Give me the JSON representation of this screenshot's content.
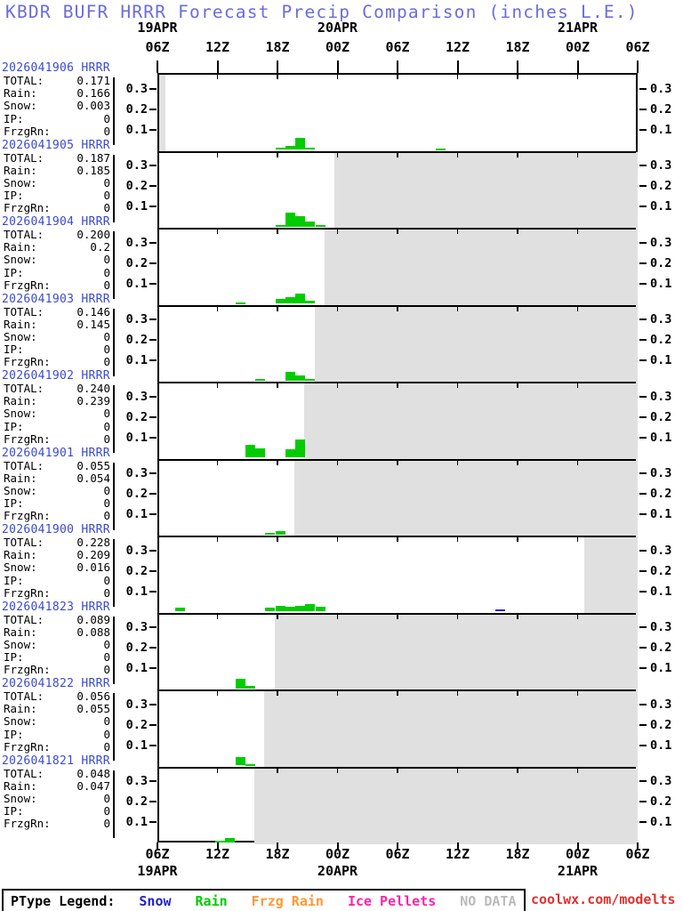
{
  "title": "KBDR BUFR HRRR Forecast Precip Comparison (inches L.E.)",
  "colors": {
    "title": "#6b6bdf",
    "run_label": "#3a4ad0",
    "rain": "#00cc00",
    "snow": "#2222cc",
    "frzg_rain": "#ff9933",
    "ice_pellets": "#ff22aa",
    "no_data_fill": "#e0e0e0",
    "no_data_text": "#bbbbbb",
    "watermark": "#e03030",
    "axis_text": "#000000"
  },
  "axis": {
    "top_dates": [
      {
        "label": "19APR",
        "hour": 0
      },
      {
        "label": "20APR",
        "hour": 18
      },
      {
        "label": "21APR",
        "hour": 42
      }
    ],
    "bottom_dates": [
      {
        "label": "19APR",
        "hour": 0
      },
      {
        "label": "20APR",
        "hour": 18
      },
      {
        "label": "21APR",
        "hour": 42
      }
    ],
    "time_ticks": [
      {
        "label": "06Z",
        "hour": 0
      },
      {
        "label": "12Z",
        "hour": 6
      },
      {
        "label": "18Z",
        "hour": 12
      },
      {
        "label": "00Z",
        "hour": 18
      },
      {
        "label": "06Z",
        "hour": 24
      },
      {
        "label": "12Z",
        "hour": 30
      },
      {
        "label": "18Z",
        "hour": 36
      },
      {
        "label": "00Z",
        "hour": 42
      },
      {
        "label": "06Z",
        "hour": 48
      }
    ],
    "y_tick_labels": [
      "0.1",
      "0.2",
      "0.3"
    ]
  },
  "stat_labels": [
    "TOTAL:",
    "Rain:",
    "Snow:",
    "IP:",
    "FrzgRn:"
  ],
  "legend": {
    "title": "PType Legend:",
    "items": [
      {
        "label": "Snow",
        "color_key": "snow"
      },
      {
        "label": "Rain",
        "color_key": "rain"
      },
      {
        "label": "Frzg Rain",
        "color_key": "frzg_rain"
      },
      {
        "label": "Ice Pellets",
        "color_key": "ice_pellets"
      },
      {
        "label": "NO DATA",
        "color_key": "no_data_text"
      }
    ]
  },
  "watermark": {
    "text": "coolwx.com/modelts"
  },
  "chart_data": {
    "type": "bar",
    "title": "KBDR BUFR HRRR Forecast Precip Comparison (inches L.E.)",
    "x_axis": {
      "start": "2026-04-19 06Z",
      "end": "2026-04-21 06Z",
      "span_hours": 48,
      "tick_interval_hours": 6
    },
    "y_axis": {
      "min": 0,
      "max": 0.375,
      "ticks": [
        0.1,
        0.2,
        0.3
      ],
      "units": "inches liquid equivalent"
    },
    "bar_unit_hours": 1,
    "panels": [
      {
        "run": "2026041906 HRRR",
        "stats": [
          "0.171",
          "0.166",
          "0.003",
          "0",
          "0"
        ],
        "bars": [
          [
            12,
            0.013,
            "rain"
          ],
          [
            13,
            0.02,
            "rain"
          ],
          [
            14,
            0.057,
            "rain"
          ],
          [
            15,
            0.013,
            "rain"
          ],
          [
            28,
            0.006,
            "rain"
          ]
        ],
        "no_data": [
          [
            0,
            0.6
          ]
        ]
      },
      {
        "run": "2026041905 HRRR",
        "stats": [
          "0.187",
          "0.185",
          "0",
          "0",
          "0"
        ],
        "bars": [
          [
            12,
            0.008,
            "rain"
          ],
          [
            13,
            0.068,
            "rain"
          ],
          [
            14,
            0.052,
            "rain"
          ],
          [
            15,
            0.024,
            "rain"
          ],
          [
            16,
            0.01,
            "rain"
          ]
        ],
        "no_data": [
          [
            17.7,
            48
          ]
        ]
      },
      {
        "run": "2026041904 HRRR",
        "stats": [
          "0.200",
          "0.2",
          "0",
          "0",
          "0"
        ],
        "bars": [
          [
            8,
            0.006,
            "rain"
          ],
          [
            12,
            0.022,
            "rain"
          ],
          [
            13,
            0.032,
            "rain"
          ],
          [
            14,
            0.048,
            "rain"
          ],
          [
            15,
            0.014,
            "rain"
          ]
        ],
        "no_data": [
          [
            16.7,
            48
          ]
        ]
      },
      {
        "run": "2026041903 HRRR",
        "stats": [
          "0.146",
          "0.145",
          "0",
          "0",
          "0"
        ],
        "bars": [
          [
            10,
            0.006,
            "rain"
          ],
          [
            13,
            0.042,
            "rain"
          ],
          [
            14,
            0.026,
            "rain"
          ],
          [
            15,
            0.008,
            "rain"
          ]
        ],
        "no_data": [
          [
            15.7,
            48
          ]
        ]
      },
      {
        "run": "2026041902 HRRR",
        "stats": [
          "0.240",
          "0.239",
          "0",
          "0",
          "0"
        ],
        "bars": [
          [
            9,
            0.065,
            "rain"
          ],
          [
            10,
            0.045,
            "rain"
          ],
          [
            13,
            0.04,
            "rain"
          ],
          [
            14,
            0.09,
            "rain"
          ]
        ],
        "no_data": [
          [
            14.7,
            48
          ]
        ]
      },
      {
        "run": "2026041901 HRRR",
        "stats": [
          "0.055",
          "0.054",
          "0",
          "0",
          "0"
        ],
        "bars": [
          [
            11,
            0.01,
            "rain"
          ],
          [
            12,
            0.016,
            "rain"
          ]
        ],
        "no_data": [
          [
            13.7,
            48
          ]
        ]
      },
      {
        "run": "2026041900 HRRR",
        "stats": [
          "0.228",
          "0.209",
          "0.016",
          "0",
          "0"
        ],
        "bars": [
          [
            2,
            0.02,
            "rain"
          ],
          [
            11,
            0.02,
            "rain"
          ],
          [
            12,
            0.03,
            "rain"
          ],
          [
            13,
            0.024,
            "rain"
          ],
          [
            14,
            0.028,
            "rain"
          ],
          [
            15,
            0.035,
            "rain"
          ],
          [
            16,
            0.022,
            "rain"
          ],
          [
            34,
            0.012,
            "snow"
          ]
        ],
        "no_data": [
          [
            42.7,
            48
          ]
        ]
      },
      {
        "run": "2026041823 HRRR",
        "stats": [
          "0.089",
          "0.088",
          "0",
          "0",
          "0"
        ],
        "bars": [
          [
            8,
            0.046,
            "rain"
          ],
          [
            9,
            0.012,
            "rain"
          ]
        ],
        "no_data": [
          [
            11.7,
            48
          ]
        ]
      },
      {
        "run": "2026041822 HRRR",
        "stats": [
          "0.056",
          "0.055",
          "0",
          "0",
          "0"
        ],
        "bars": [
          [
            8,
            0.042,
            "rain"
          ],
          [
            9,
            0.006,
            "rain"
          ]
        ],
        "no_data": [
          [
            10.7,
            48
          ]
        ]
      },
      {
        "run": "2026041821 HRRR",
        "stats": [
          "0.048",
          "0.047",
          "0",
          "0",
          "0"
        ],
        "bars": [
          [
            6,
            0.006,
            "rain"
          ],
          [
            7,
            0.022,
            "rain"
          ]
        ],
        "no_data": [
          [
            9.7,
            48
          ]
        ]
      }
    ]
  }
}
